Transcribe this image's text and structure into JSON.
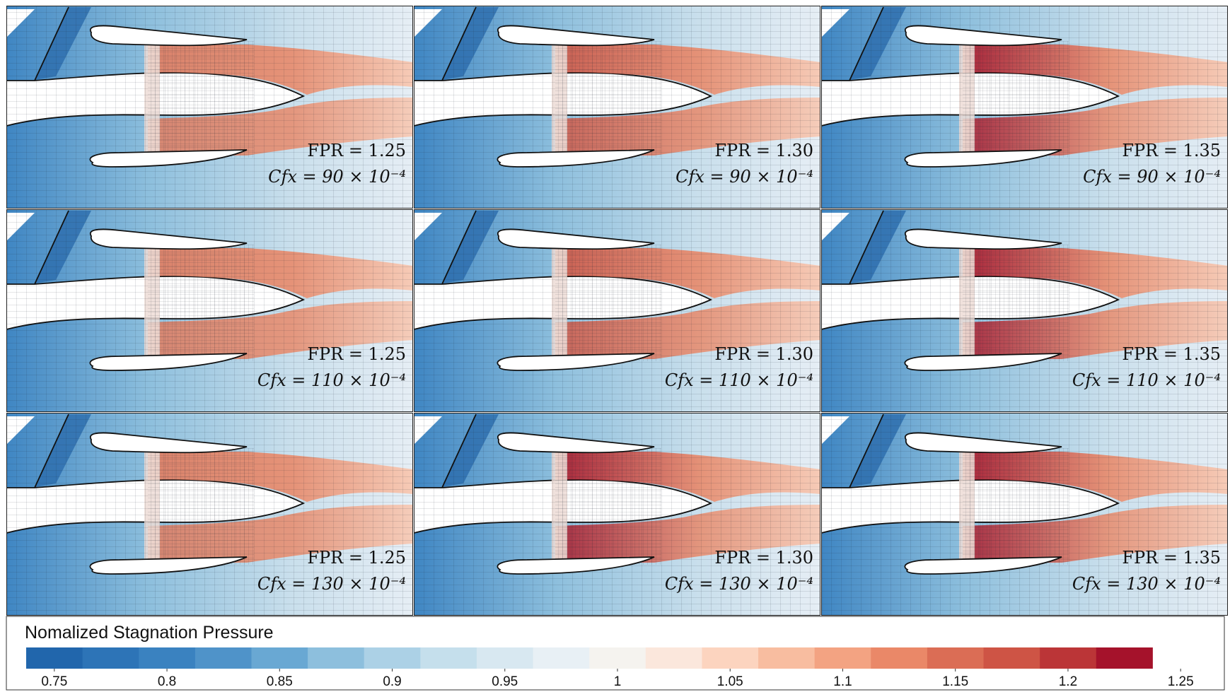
{
  "figure": {
    "colorbar": {
      "title": "Nomalized Stagnation Pressure",
      "min": 0.7375,
      "max": 1.2625,
      "step": 0.025,
      "ticks": [
        "0.75",
        "0.8",
        "0.85",
        "0.9",
        "0.95",
        "1",
        "1.05",
        "1.1",
        "1.15",
        "1.2",
        "1.25"
      ],
      "tick_values": [
        0.75,
        0.8,
        0.85,
        0.9,
        0.95,
        1.0,
        1.05,
        1.1,
        1.15,
        1.2,
        1.25
      ],
      "colors": [
        "#2166ac",
        "#2d74b7",
        "#3a82c0",
        "#4f93c9",
        "#69a8d3",
        "#8dbfdd",
        "#acd1e6",
        "#c5dfec",
        "#d8e8f1",
        "#e8f0f5",
        "#f5f3ef",
        "#fbe7dc",
        "#fcd4bf",
        "#f8bda0",
        "#f3a382",
        "#ea8868",
        "#db6d55",
        "#ce5445",
        "#bb3537",
        "#a5122b"
      ]
    },
    "panels": [
      {
        "fpr": "FPR = 1.25",
        "cf": "Cfx = 90 × 10⁻⁴",
        "level": 0.35
      },
      {
        "fpr": "FPR = 1.30",
        "cf": "Cfx = 90 × 10⁻⁴",
        "level": 0.6
      },
      {
        "fpr": "FPR = 1.35",
        "cf": "Cfx = 90 × 10⁻⁴",
        "level": 0.9
      },
      {
        "fpr": "FPR = 1.25",
        "cf": "Cfx = 110 × 10⁻⁴",
        "level": 0.4
      },
      {
        "fpr": "FPR = 1.30",
        "cf": "Cfx = 110 × 10⁻⁴",
        "level": 0.65
      },
      {
        "fpr": "FPR = 1.35",
        "cf": "Cfx = 110 × 10⁻⁴",
        "level": 0.92
      },
      {
        "fpr": "FPR = 1.25",
        "cf": "Cfx = 130 × 10⁻⁴",
        "level": 0.45
      },
      {
        "fpr": "FPR = 1.30",
        "cf": "Cfx = 130 × 10⁻⁴",
        "level": 0.85
      },
      {
        "fpr": "FPR = 1.35",
        "cf": "Cfx = 130 × 10⁻⁴",
        "level": 1.0
      }
    ]
  }
}
